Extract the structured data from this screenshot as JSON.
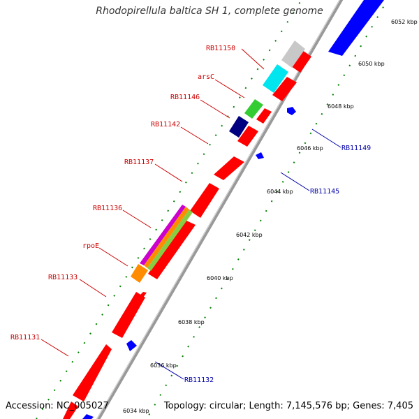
{
  "title": "Rhodopirellula baltica SH 1, complete genome",
  "footer": {
    "accession": "Accession: NC_005027",
    "summary": "Topology: circular; Length: 7,145,576 bp; Genes: 7,405"
  },
  "colors": {
    "forward_cds": "#ff0000",
    "reverse_cds": "#0000ff",
    "backbone": "#999999",
    "tick": "#008000",
    "label_forward": "#cc0000",
    "label_reverse": "#0000aa",
    "cyan_feature": "#00e5ee",
    "grey_feature": "#c8c8c8",
    "green_feature": "#33cc33",
    "navy_feature": "#000080",
    "orange_feature": "#ff8c00"
  },
  "scale_ticks": [
    "6034 kbp",
    "6036 kbp",
    "6038 kbp",
    "6040 kbp",
    "6042 kbp",
    "6044 kbp",
    "6046 kbp",
    "6048 kbp",
    "6050 kbp",
    "6052 kbp"
  ],
  "forward_labels": [
    "RB11150",
    "arsC",
    "RB11146",
    "RB11142",
    "RB11137",
    "RB11136",
    "rpoE",
    "RB11133",
    "RB11131"
  ],
  "reverse_labels": [
    "RB11149",
    "RB11145",
    "RB11132"
  ]
}
